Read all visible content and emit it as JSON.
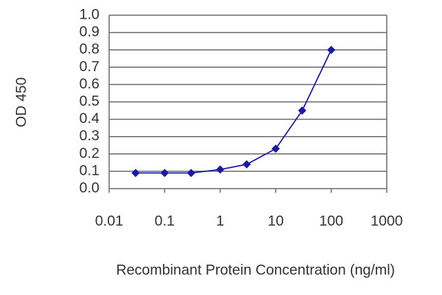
{
  "chart_data": {
    "type": "line",
    "x_label": "Recombinant Protein Concentration (ng/ml)",
    "y_label": "OD 450",
    "x": [
      0.03,
      0.1,
      0.3,
      1,
      3,
      10,
      30,
      100
    ],
    "series": [
      {
        "color": "#1a1aa8",
        "values": [
          0.09,
          0.09,
          0.09,
          0.11,
          0.14,
          0.23,
          0.45,
          0.8
        ]
      }
    ],
    "xlim": [
      0.01,
      1000
    ],
    "xticks": [
      0.01,
      0.1,
      1,
      10,
      100,
      1000
    ],
    "xlog": true,
    "ylim": [
      0,
      1
    ],
    "yticks": [
      {
        "value": 0,
        "label": "0.0"
      },
      0.1,
      0.2,
      0.3,
      0.4,
      0.5,
      0.6,
      0.7,
      0.8,
      0.9,
      {
        "value": 1,
        "label": "1.0"
      }
    ],
    "grid": true
  }
}
